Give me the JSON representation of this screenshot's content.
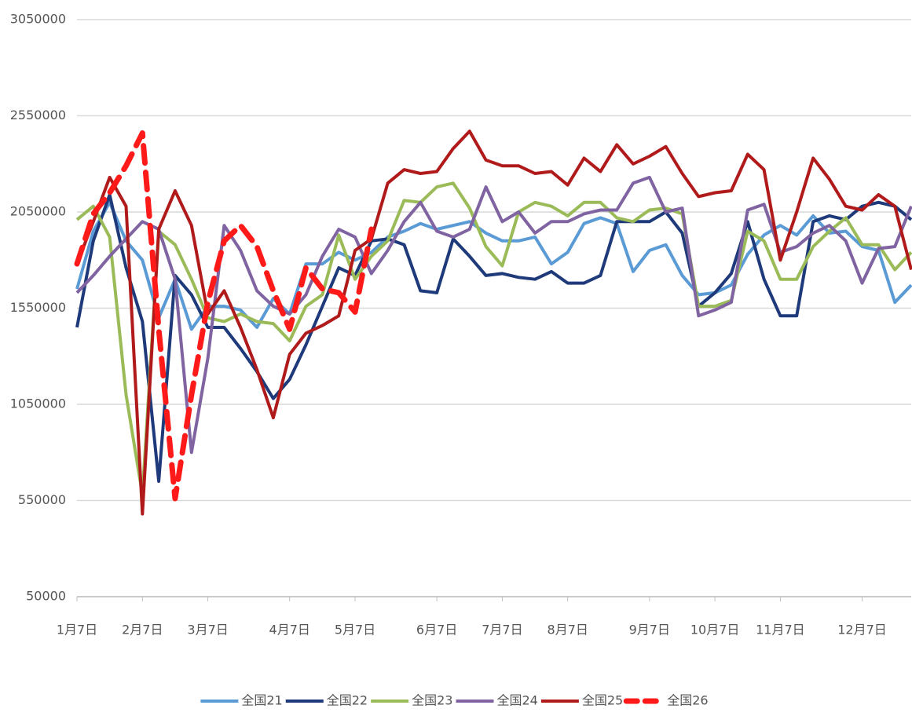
{
  "chart_data": {
    "type": "line",
    "categories": [
      "1月7日",
      null,
      null,
      null,
      "2月7日",
      null,
      null,
      null,
      "3月7日",
      null,
      null,
      null,
      null,
      "4月7日",
      null,
      null,
      null,
      "5月7日",
      null,
      null,
      null,
      null,
      "6月7日",
      null,
      null,
      null,
      "7月7日",
      null,
      null,
      null,
      "8月7日",
      null,
      null,
      null,
      null,
      "9月7日",
      null,
      null,
      null,
      "10月7日",
      null,
      null,
      null,
      "11月7日",
      null,
      null,
      null,
      null,
      "12月7日",
      null,
      null,
      null
    ],
    "ylim": [
      50000,
      3050000
    ],
    "yticks": [
      50000,
      550000,
      1050000,
      1550000,
      2050000,
      2550000,
      3050000
    ],
    "grid": true,
    "legend": "bottom",
    "series": [
      {
        "name": "全国21",
        "color": "#5b9bd5",
        "line_style": "solid",
        "values": [
          1650000,
          1950000,
          2100000,
          1900000,
          1800000,
          1500000,
          1700000,
          1440000,
          1560000,
          1560000,
          1540000,
          1450000,
          1600000,
          1520000,
          1780000,
          1780000,
          1840000,
          1800000,
          1840000,
          1920000,
          1950000,
          1990000,
          1960000,
          1980000,
          2000000,
          1940000,
          1900000,
          1900000,
          1920000,
          1780000,
          1840000,
          1990000,
          2020000,
          1990000,
          1740000,
          1850000,
          1880000,
          1720000,
          1620000,
          1630000,
          1670000,
          1830000,
          1930000,
          1980000,
          1930000,
          2030000,
          1940000,
          1950000,
          1870000,
          1850000,
          1580000,
          1670000
        ]
      },
      {
        "name": "全国22",
        "color": "#1f3a7a",
        "line_style": "solid",
        "values": [
          1450000,
          1900000,
          2140000,
          1760000,
          1480000,
          650000,
          1720000,
          1620000,
          1450000,
          1450000,
          1340000,
          1220000,
          1080000,
          1180000,
          1360000,
          1560000,
          1760000,
          1720000,
          1900000,
          1910000,
          1880000,
          1640000,
          1630000,
          1910000,
          1820000,
          1720000,
          1730000,
          1710000,
          1700000,
          1740000,
          1680000,
          1680000,
          1720000,
          2000000,
          2000000,
          2000000,
          2050000,
          1940000,
          1560000,
          1630000,
          1730000,
          2000000,
          1700000,
          1510000,
          1510000,
          2000000,
          2030000,
          2010000,
          2080000,
          2100000,
          2080000,
          2010000
        ]
      },
      {
        "name": "全国23",
        "color": "#9bbb59",
        "line_style": "solid",
        "values": [
          2010000,
          2080000,
          1920000,
          1100000,
          580000,
          1950000,
          1880000,
          1700000,
          1500000,
          1480000,
          1520000,
          1480000,
          1470000,
          1380000,
          1560000,
          1620000,
          1930000,
          1700000,
          1820000,
          1900000,
          2110000,
          2100000,
          2180000,
          2200000,
          2070000,
          1870000,
          1770000,
          2050000,
          2100000,
          2080000,
          2030000,
          2100000,
          2100000,
          2020000,
          2000000,
          2060000,
          2070000,
          2040000,
          1560000,
          1560000,
          1590000,
          1950000,
          1900000,
          1700000,
          1700000,
          1870000,
          1950000,
          2020000,
          1880000,
          1880000,
          1750000,
          1840000
        ]
      },
      {
        "name": "全国24",
        "color": "#8064a2",
        "line_style": "solid",
        "values": [
          1630000,
          1720000,
          1820000,
          1910000,
          2000000,
          1960000,
          1700000,
          800000,
          1290000,
          1980000,
          1850000,
          1640000,
          1560000,
          1520000,
          1620000,
          1820000,
          1960000,
          1920000,
          1730000,
          1850000,
          2000000,
          2100000,
          1950000,
          1920000,
          1960000,
          2180000,
          2000000,
          2050000,
          1940000,
          2000000,
          2000000,
          2040000,
          2060000,
          2060000,
          2200000,
          2230000,
          2050000,
          2070000,
          1510000,
          1540000,
          1580000,
          2060000,
          2090000,
          1840000,
          1870000,
          1940000,
          1980000,
          1900000,
          1680000,
          1860000,
          1870000,
          2080000
        ]
      },
      {
        "name": "全国25",
        "color": "#b01a1a",
        "line_style": "solid",
        "values": [
          1780000,
          2000000,
          2230000,
          2080000,
          480000,
          1960000,
          2160000,
          1980000,
          1520000,
          1640000,
          1450000,
          1230000,
          980000,
          1310000,
          1420000,
          1460000,
          1510000,
          1850000,
          1910000,
          2200000,
          2270000,
          2250000,
          2260000,
          2380000,
          2470000,
          2320000,
          2290000,
          2290000,
          2250000,
          2260000,
          2190000,
          2330000,
          2260000,
          2400000,
          2300000,
          2340000,
          2390000,
          2250000,
          2130000,
          2150000,
          2160000,
          2350000,
          2270000,
          1800000,
          2050000,
          2330000,
          2220000,
          2080000,
          2060000,
          2140000,
          2080000,
          1750000
        ]
      },
      {
        "name": "全国26",
        "color": "#ff1a1a",
        "line_style": "dashed",
        "values": [
          1780000,
          2040000,
          2150000,
          2290000,
          2460000,
          1440000,
          560000,
          1100000,
          1580000,
          1900000,
          1980000,
          1870000,
          1640000,
          1440000,
          1760000,
          1650000,
          1630000,
          1530000,
          1960000,
          null,
          null,
          null,
          null,
          null,
          null,
          null,
          null,
          null,
          null,
          null,
          null,
          null,
          null,
          null,
          null,
          null,
          null,
          null,
          null,
          null,
          null,
          null,
          null,
          null,
          null,
          null,
          null,
          null,
          null,
          null,
          null,
          null
        ]
      }
    ]
  }
}
